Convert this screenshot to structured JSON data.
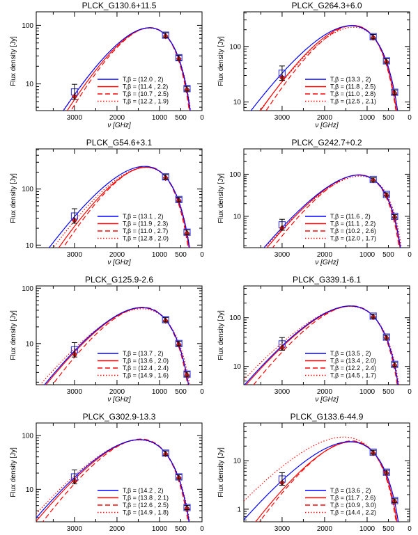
{
  "chart_data": [
    {
      "type": "line",
      "title": "PLCK_G130.6+11.5",
      "xlabel": "ν [GHz]",
      "ylabel": "Flux density [Jy]",
      "x_ticks": [
        3000,
        2000,
        1000,
        500,
        0
      ],
      "y_ticks": [
        10,
        100
      ],
      "ylim": [
        3.5,
        170
      ],
      "x_scale": "linear",
      "y_scale": "log",
      "legend_placement": "bottom-right",
      "observed": [
        {
          "x": 3000,
          "y": 7.3
        },
        {
          "x": 857,
          "y": 68
        },
        {
          "x": 545,
          "y": 28
        },
        {
          "x": 353,
          "y": 8.3
        }
      ],
      "series": [
        {
          "label": "T,β = (12.0 , 2)",
          "T": 12.0,
          "beta": 2.0,
          "color": "#0000ff",
          "dash": "solid"
        },
        {
          "label": "T,β = (11.4 , 2.2)",
          "T": 11.4,
          "beta": 2.2,
          "color": "#ff0000",
          "dash": "solid"
        },
        {
          "label": "T,β = (10.7 , 2.5)",
          "T": 10.7,
          "beta": 2.5,
          "color": "#ff0000",
          "dash": "dashed"
        },
        {
          "label": "T,β = (12.2 , 1.9)",
          "T": 12.2,
          "beta": 1.9,
          "color": "#ff0000",
          "dash": "dotted"
        }
      ]
    },
    {
      "type": "line",
      "title": "PLCK_G264.3+6.0",
      "xlabel": "ν [GHz]",
      "ylabel": "Flux density [Jy]",
      "x_ticks": [
        3000,
        2000,
        1000,
        500,
        0
      ],
      "y_ticks": [
        10,
        100
      ],
      "ylim": [
        7,
        420
      ],
      "x_scale": "linear",
      "y_scale": "log",
      "legend_placement": "bottom-right",
      "observed": [
        {
          "x": 3000,
          "y": 33
        },
        {
          "x": 857,
          "y": 150
        },
        {
          "x": 545,
          "y": 55
        },
        {
          "x": 353,
          "y": 15
        }
      ],
      "series": [
        {
          "label": "T,β = (13.3 , 2)",
          "T": 13.3,
          "beta": 2.0,
          "color": "#0000ff",
          "dash": "solid"
        },
        {
          "label": "T,β = (11.8 , 2.5)",
          "T": 11.8,
          "beta": 2.5,
          "color": "#ff0000",
          "dash": "solid"
        },
        {
          "label": "T,β = (11.0 , 2.8)",
          "T": 11.0,
          "beta": 2.8,
          "color": "#ff0000",
          "dash": "dashed"
        },
        {
          "label": "T,β = (12.5 , 2.1)",
          "T": 12.5,
          "beta": 2.1,
          "color": "#ff0000",
          "dash": "dotted"
        }
      ]
    },
    {
      "type": "line",
      "title": "PLCK_G54.6+3.1",
      "xlabel": "ν [GHz]",
      "ylabel": "Flux density [Jy]",
      "x_ticks": [
        3000,
        2000,
        1000,
        500,
        0
      ],
      "y_ticks": [
        10,
        100
      ],
      "ylim": [
        9,
        520
      ],
      "x_scale": "linear",
      "y_scale": "log",
      "legend_placement": "bottom-right",
      "observed": [
        {
          "x": 3000,
          "y": 33
        },
        {
          "x": 857,
          "y": 165
        },
        {
          "x": 545,
          "y": 65
        },
        {
          "x": 353,
          "y": 17
        }
      ],
      "series": [
        {
          "label": "T,β = (13.1 , 2)",
          "T": 13.1,
          "beta": 2.0,
          "color": "#0000ff",
          "dash": "solid"
        },
        {
          "label": "T,β = (11.9 , 2.3)",
          "T": 11.9,
          "beta": 2.3,
          "color": "#ff0000",
          "dash": "solid"
        },
        {
          "label": "T,β = (11.0 , 2.7)",
          "T": 11.0,
          "beta": 2.7,
          "color": "#ff0000",
          "dash": "dashed"
        },
        {
          "label": "T,β = (12.8 , 2.0)",
          "T": 12.8,
          "beta": 2.0,
          "color": "#ff0000",
          "dash": "dotted"
        }
      ]
    },
    {
      "type": "line",
      "title": "PLCK_G242.7+0.2",
      "xlabel": "ν [GHz]",
      "ylabel": "Flux density [Jy]",
      "x_ticks": [
        3000,
        2000,
        1000,
        500,
        0
      ],
      "y_ticks": [
        10,
        100
      ],
      "ylim": [
        1.8,
        400
      ],
      "x_scale": "linear",
      "y_scale": "log",
      "legend_placement": "bottom-right",
      "observed": [
        {
          "x": 3000,
          "y": 6.3
        },
        {
          "x": 857,
          "y": 75
        },
        {
          "x": 545,
          "y": 33
        },
        {
          "x": 353,
          "y": 10
        }
      ],
      "series": [
        {
          "label": "T,β = (11.6 , 2)",
          "T": 11.6,
          "beta": 2.0,
          "color": "#0000ff",
          "dash": "solid"
        },
        {
          "label": "T,β = (11.1 , 2.2)",
          "T": 11.1,
          "beta": 2.2,
          "color": "#ff0000",
          "dash": "solid"
        },
        {
          "label": "T,β = (10.2 , 2.6)",
          "T": 10.2,
          "beta": 2.6,
          "color": "#ff0000",
          "dash": "dashed"
        },
        {
          "label": "T,β = (12.0 , 1.7)",
          "T": 12.0,
          "beta": 1.7,
          "color": "#ff0000",
          "dash": "dotted"
        }
      ]
    },
    {
      "type": "line",
      "title": "PLCK_G125.9-2.6",
      "xlabel": "ν [GHz]",
      "ylabel": "Flux density [Jy]",
      "x_ticks": [
        3000,
        2000,
        1000,
        500,
        0
      ],
      "y_ticks": [
        10,
        100
      ],
      "ylim": [
        1.8,
        110
      ],
      "x_scale": "linear",
      "y_scale": "log",
      "legend_placement": "bottom-right",
      "observed": [
        {
          "x": 3000,
          "y": 7.7
        },
        {
          "x": 857,
          "y": 27
        },
        {
          "x": 545,
          "y": 10
        },
        {
          "x": 353,
          "y": 2.8
        }
      ],
      "series": [
        {
          "label": "T,β = (13.7 , 2)",
          "T": 13.7,
          "beta": 2.0,
          "color": "#0000ff",
          "dash": "solid"
        },
        {
          "label": "T,β = (13.6 , 2.0)",
          "T": 13.6,
          "beta": 2.0,
          "color": "#ff0000",
          "dash": "solid"
        },
        {
          "label": "T,β = (12.4 , 2.4)",
          "T": 12.4,
          "beta": 2.4,
          "color": "#ff0000",
          "dash": "dashed"
        },
        {
          "label": "T,β = (14.9 , 1.6)",
          "T": 14.9,
          "beta": 1.6,
          "color": "#ff0000",
          "dash": "dotted"
        }
      ]
    },
    {
      "type": "line",
      "title": "PLCK_G339.1-6.1",
      "xlabel": "ν [GHz]",
      "ylabel": "Flux density [Jy]",
      "x_ticks": [
        3000,
        2000,
        1000,
        500,
        0
      ],
      "y_ticks": [
        10,
        100
      ],
      "ylim": [
        4.2,
        450
      ],
      "x_scale": "linear",
      "y_scale": "log",
      "legend_placement": "bottom-right",
      "observed": [
        {
          "x": 3000,
          "y": 29
        },
        {
          "x": 857,
          "y": 108
        },
        {
          "x": 545,
          "y": 40
        },
        {
          "x": 353,
          "y": 11
        }
      ],
      "series": [
        {
          "label": "T,β = (13.5 , 2)",
          "T": 13.5,
          "beta": 2.0,
          "color": "#0000ff",
          "dash": "solid"
        },
        {
          "label": "T,β = (13.4 , 2.0)",
          "T": 13.4,
          "beta": 2.0,
          "color": "#ff0000",
          "dash": "solid"
        },
        {
          "label": "T,β = (12.2 , 2.4)",
          "T": 12.2,
          "beta": 2.4,
          "color": "#ff0000",
          "dash": "dashed"
        },
        {
          "label": "T,β = (14.5 , 1.7)",
          "T": 14.5,
          "beta": 1.7,
          "color": "#ff0000",
          "dash": "dotted"
        }
      ]
    },
    {
      "type": "line",
      "title": "PLCK_G302.9-13.3",
      "xlabel": "ν [GHz]",
      "ylabel": "Flux density [Jy]",
      "x_ticks": [
        3000,
        2000,
        1000,
        500,
        0
      ],
      "y_ticks": [
        10,
        100
      ],
      "ylim": [
        2.5,
        170
      ],
      "x_scale": "linear",
      "y_scale": "log",
      "legend_placement": "bottom-right",
      "observed": [
        {
          "x": 3000,
          "y": 17
        },
        {
          "x": 857,
          "y": 47
        },
        {
          "x": 545,
          "y": 17
        },
        {
          "x": 353,
          "y": 4.6
        }
      ],
      "series": [
        {
          "label": "T,β = (14.2 , 2)",
          "T": 14.2,
          "beta": 2.0,
          "color": "#0000ff",
          "dash": "solid"
        },
        {
          "label": "T,β = (13.8 , 2.1)",
          "T": 13.8,
          "beta": 2.1,
          "color": "#ff0000",
          "dash": "solid"
        },
        {
          "label": "T,β = (12.6 , 2.5)",
          "T": 12.6,
          "beta": 2.5,
          "color": "#ff0000",
          "dash": "dashed"
        },
        {
          "label": "T,β = (14.9 , 1.8)",
          "T": 14.9,
          "beta": 1.8,
          "color": "#ff0000",
          "dash": "dotted"
        }
      ]
    },
    {
      "type": "line",
      "title": "PLCK_G133.6-44.9",
      "xlabel": "ν [GHz]",
      "ylabel": "Flux density [Jy]",
      "x_ticks": [
        3000,
        2000,
        1000,
        500,
        0
      ],
      "y_ticks": [
        1,
        10
      ],
      "ylim": [
        0.55,
        60
      ],
      "x_scale": "linear",
      "y_scale": "log",
      "legend_placement": "bottom-right",
      "observed": [
        {
          "x": 3000,
          "y": 4.2
        },
        {
          "x": 857,
          "y": 15
        },
        {
          "x": 545,
          "y": 5.8
        },
        {
          "x": 353,
          "y": 1.5
        }
      ],
      "series": [
        {
          "label": "T,β = (13.6 , 2)",
          "T": 13.6,
          "beta": 2.0,
          "color": "#0000ff",
          "dash": "solid"
        },
        {
          "label": "T,β = (11.7 , 2.6)",
          "T": 11.7,
          "beta": 2.6,
          "color": "#ff0000",
          "dash": "solid"
        },
        {
          "label": "T,β = (10.9 , 3.0)",
          "T": 10.9,
          "beta": 3.0,
          "color": "#ff0000",
          "dash": "dashed"
        },
        {
          "label": "T,β = (14.4 , 2.2)",
          "T": 14.4,
          "beta": 2.2,
          "color": "#ff0000",
          "dash": "dotted"
        }
      ]
    }
  ]
}
